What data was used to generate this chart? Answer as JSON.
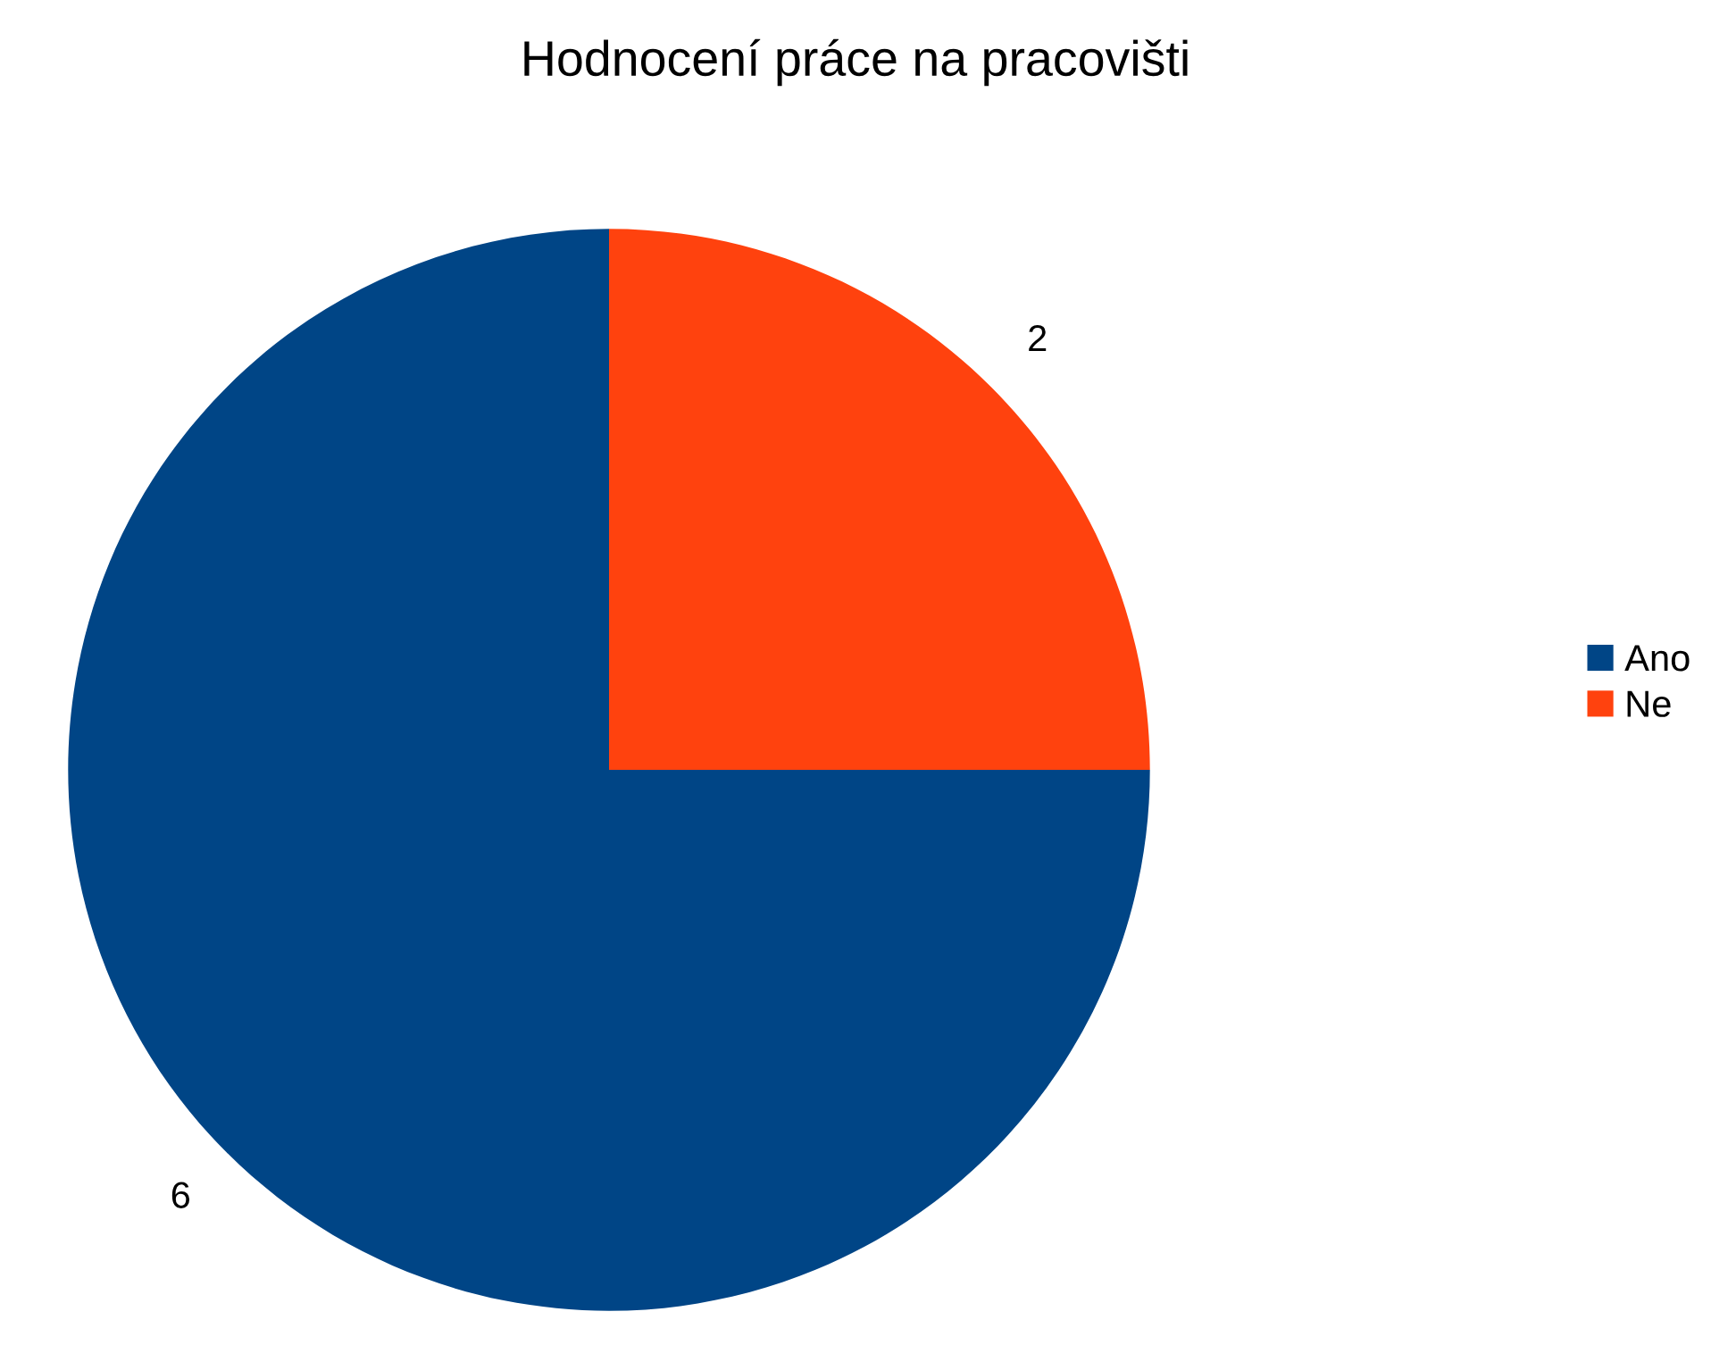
{
  "chart_data": {
    "type": "pie",
    "title": "Hodnocení práce na pracovišti",
    "categories": [
      "Ano",
      "Ne"
    ],
    "values": [
      6,
      2
    ],
    "colors": [
      "#004586",
      "#ff420e"
    ],
    "data_labels": true,
    "legend": "right"
  }
}
